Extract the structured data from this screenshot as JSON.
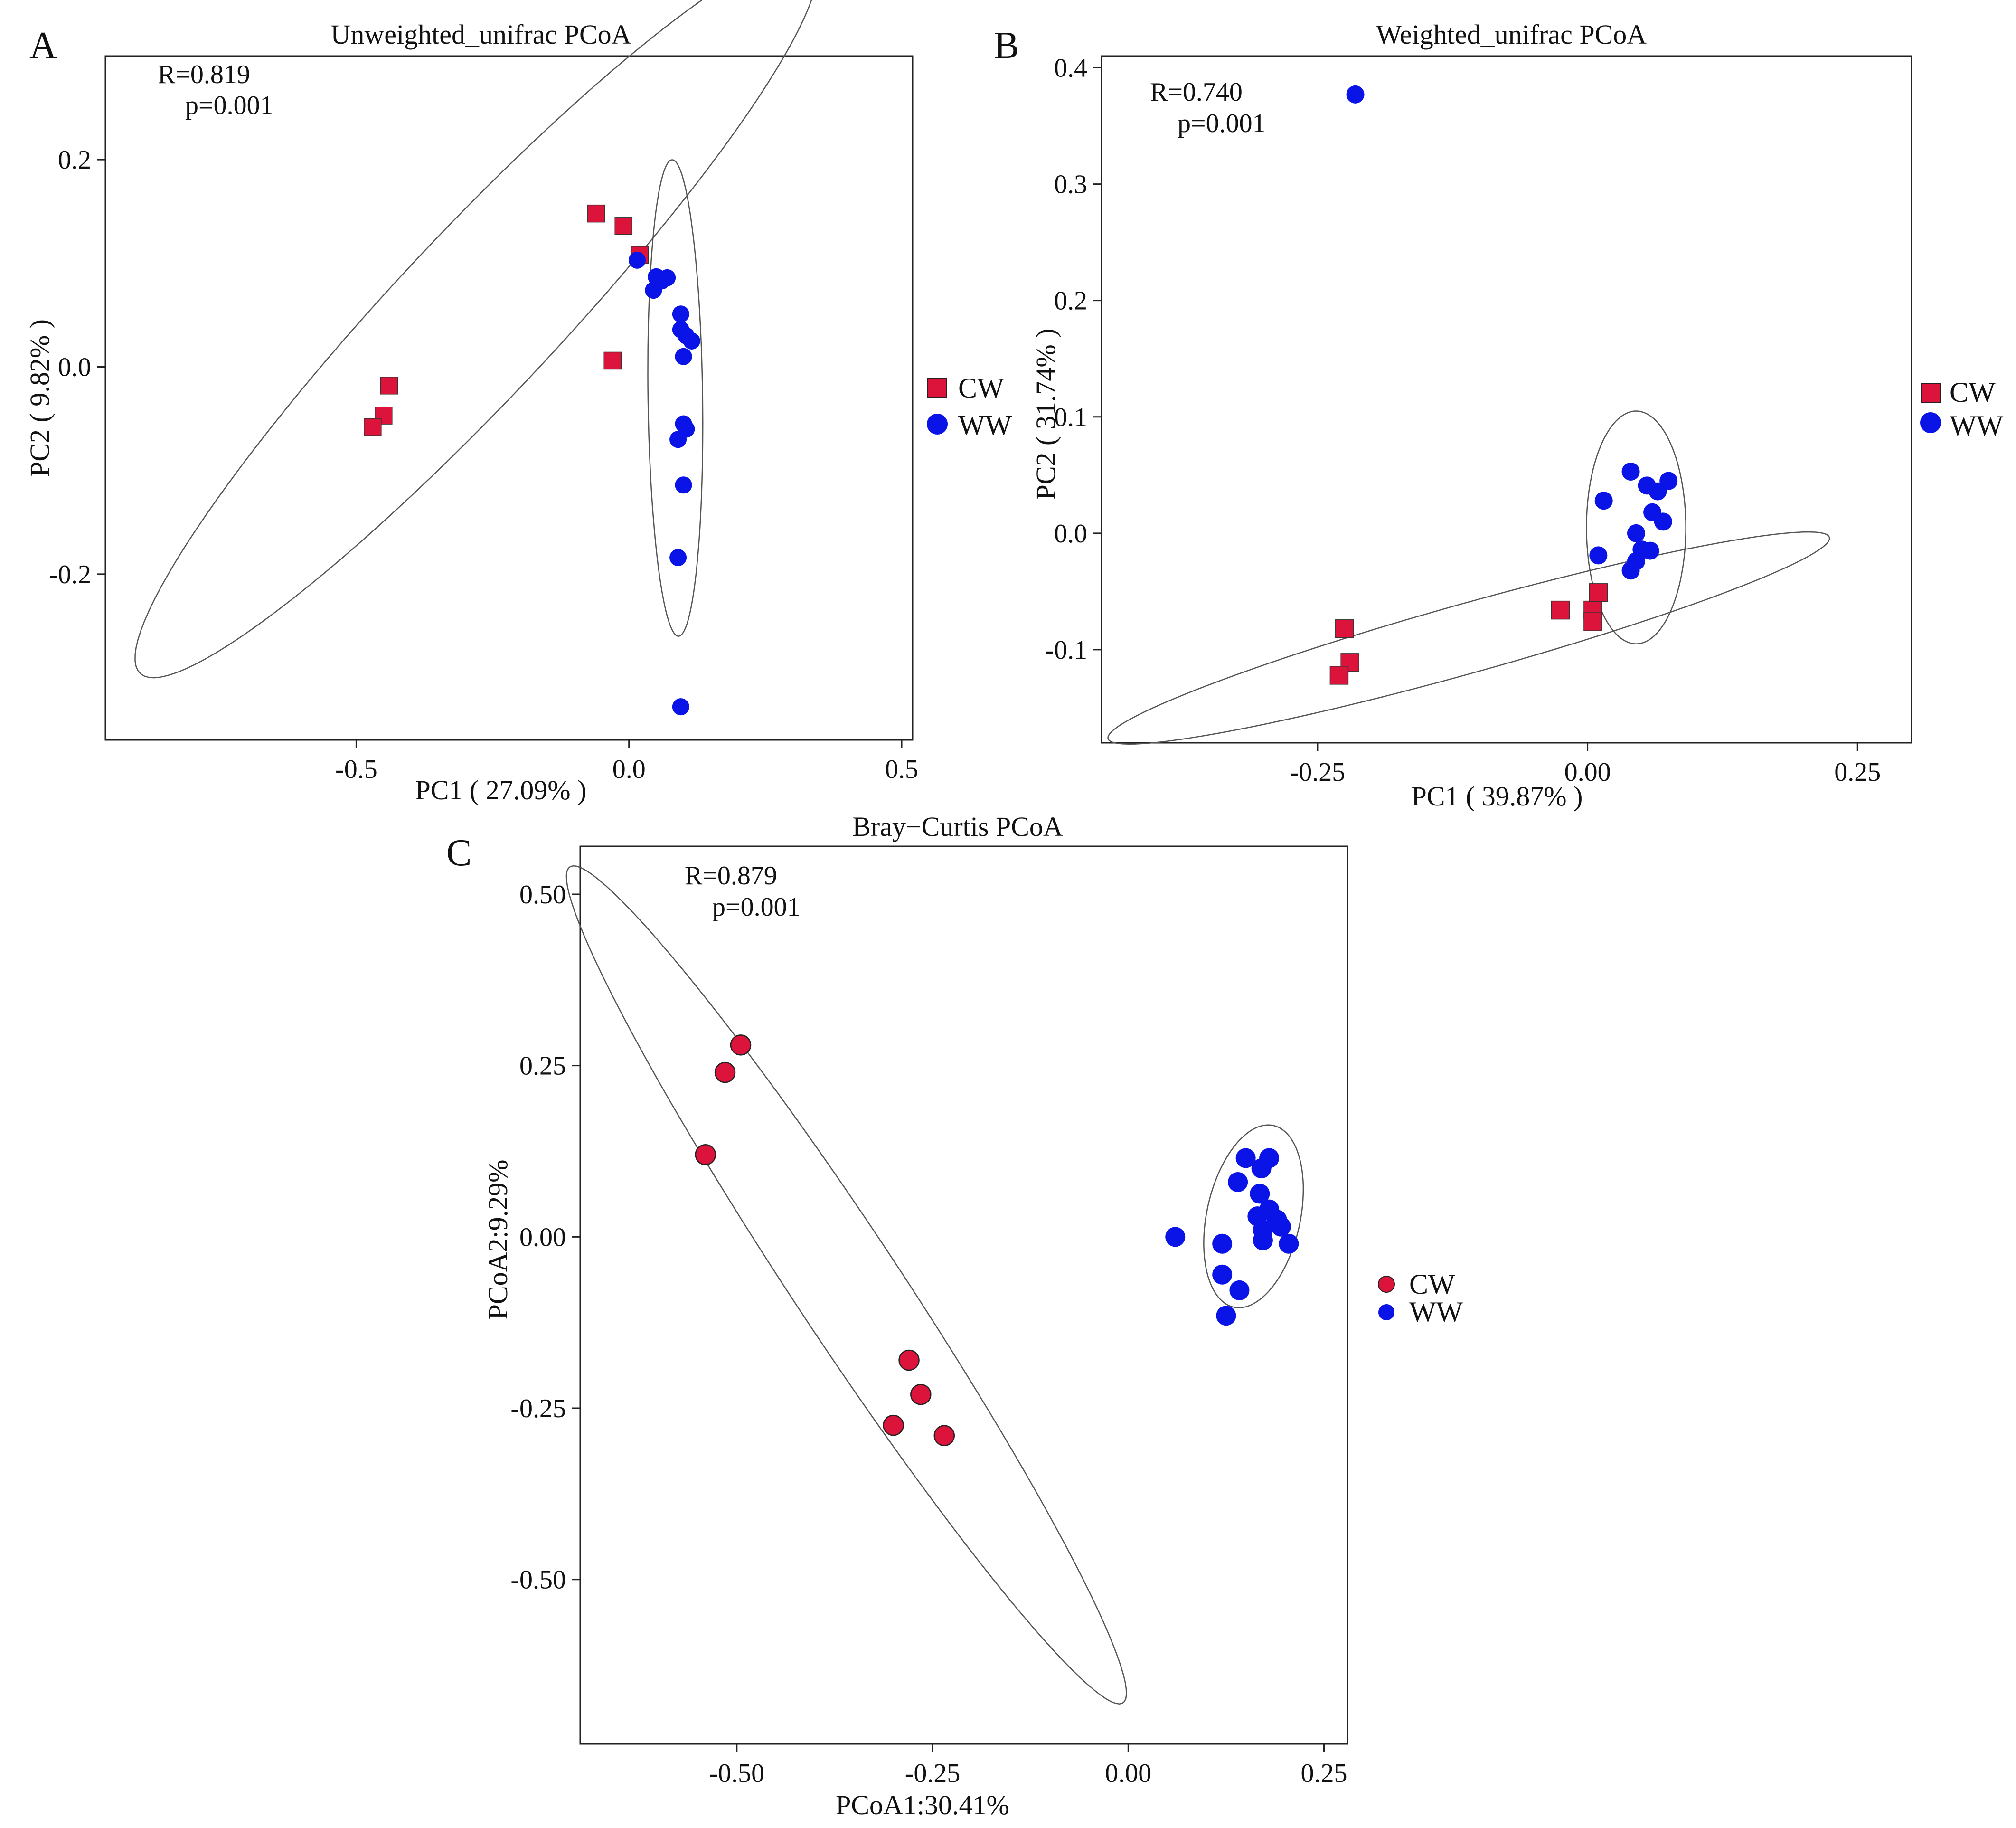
{
  "figure": {
    "colors": {
      "cw": "#dc143c",
      "ww": "#0a14e6",
      "axis": "#222222",
      "ellipse": "#555555"
    }
  },
  "chart_data": [
    {
      "type": "scatter",
      "panel": "A",
      "title": "Unweighted_unifrac PCoA",
      "xlabel": "PC1 ( 27.09% )",
      "ylabel": "PC2 ( 9.82% )",
      "xlim": [
        -0.96,
        0.52
      ],
      "ylim": [
        -0.36,
        0.3
      ],
      "xticks": [
        -0.5,
        0.0,
        0.5
      ],
      "xtick_labels": [
        "-0.5",
        "0.0",
        "0.5"
      ],
      "yticks": [
        -0.2,
        0.0,
        0.2
      ],
      "ytick_labels": [
        "-0.2",
        "0.0",
        "0.2"
      ],
      "stats": [
        "R=0.819",
        "p=0.001"
      ],
      "legend": [
        "CW",
        "WW"
      ],
      "marker_shape": {
        "CW": "square",
        "WW": "circle"
      },
      "series": [
        {
          "name": "CW",
          "points": [
            [
              -0.06,
              0.148
            ],
            [
              -0.01,
              0.136
            ],
            [
              0.02,
              0.108
            ],
            [
              -0.03,
              0.006
            ],
            [
              -0.44,
              -0.018
            ],
            [
              -0.45,
              -0.047
            ],
            [
              -0.47,
              -0.058
            ]
          ]
        },
        {
          "name": "WW",
          "points": [
            [
              0.015,
              0.103
            ],
            [
              0.05,
              0.087
            ],
            [
              0.07,
              0.086
            ],
            [
              0.06,
              0.083
            ],
            [
              0.045,
              0.074
            ],
            [
              0.095,
              0.051
            ],
            [
              0.095,
              0.036
            ],
            [
              0.105,
              0.03
            ],
            [
              0.115,
              0.025
            ],
            [
              0.1,
              0.01
            ],
            [
              0.1,
              -0.055
            ],
            [
              0.105,
              -0.06
            ],
            [
              0.09,
              -0.07
            ],
            [
              0.1,
              -0.114
            ],
            [
              0.09,
              -0.184
            ],
            [
              0.095,
              -0.328
            ]
          ]
        }
      ],
      "ellipses": [
        {
          "group": "CW",
          "center": [
            -0.28,
            0.05
          ],
          "semi_axes": [
            0.71,
            0.1
          ],
          "angle_deg": 28.5
        },
        {
          "group": "WW",
          "center": [
            0.085,
            -0.03
          ],
          "semi_axes": [
            0.23,
            0.05
          ],
          "angle_deg": 91.5
        }
      ]
    },
    {
      "type": "scatter",
      "panel": "B",
      "title": "Weighted_unifrac PCoA",
      "xlabel": "PC1 ( 39.87% )",
      "ylabel": "PC2 ( 31.74% )",
      "xlim": [
        -0.45,
        0.3
      ],
      "ylim": [
        -0.18,
        0.41
      ],
      "xticks": [
        -0.25,
        0.0,
        0.25
      ],
      "xtick_labels": [
        "-0.25",
        "0.00",
        "0.25"
      ],
      "yticks": [
        -0.1,
        0.0,
        0.1,
        0.2,
        0.3,
        0.4
      ],
      "ytick_labels": [
        "-0.1",
        "0.0",
        "0.1",
        "0.2",
        "0.3",
        "0.4"
      ],
      "stats": [
        "R=0.740",
        "p=0.001"
      ],
      "legend": [
        "CW",
        "WW"
      ],
      "marker_shape": {
        "CW": "square",
        "WW": "circle"
      },
      "series": [
        {
          "name": "CW",
          "points": [
            [
              -0.225,
              -0.082
            ],
            [
              -0.22,
              -0.111
            ],
            [
              -0.23,
              -0.122
            ],
            [
              -0.025,
              -0.066
            ],
            [
              0.005,
              -0.066
            ],
            [
              0.005,
              -0.076
            ],
            [
              0.01,
              -0.051
            ]
          ]
        },
        {
          "name": "WW",
          "points": [
            [
              -0.215,
              0.377
            ],
            [
              0.04,
              0.053
            ],
            [
              0.055,
              0.041
            ],
            [
              0.075,
              0.045
            ],
            [
              0.065,
              0.036
            ],
            [
              0.015,
              0.028
            ],
            [
              0.06,
              0.018
            ],
            [
              0.07,
              0.01
            ],
            [
              0.045,
              0.0
            ],
            [
              0.05,
              -0.014
            ],
            [
              0.058,
              -0.015
            ],
            [
              0.01,
              -0.019
            ],
            [
              0.045,
              -0.024
            ],
            [
              0.04,
              -0.032
            ]
          ]
        }
      ],
      "ellipses": [
        {
          "group": "CW",
          "center": [
            -0.11,
            -0.09
          ],
          "semi_axes": [
            0.345,
            0.03
          ],
          "angle_deg": 14.5
        },
        {
          "group": "WW",
          "center": [
            0.045,
            0.005
          ],
          "semi_axes": [
            0.1,
            0.046
          ],
          "angle_deg": 90
        }
      ]
    },
    {
      "type": "scatter",
      "panel": "C",
      "title": "Bray−Curtis PCoA",
      "xlabel": "PCoA1:30.41%",
      "ylabel": "PCoA2:9.29%",
      "xlim": [
        -0.7,
        0.28
      ],
      "ylim": [
        -0.74,
        0.57
      ],
      "xticks": [
        -0.5,
        -0.25,
        0.0,
        0.25
      ],
      "xtick_labels": [
        "-0.50",
        "-0.25",
        "0.00",
        "0.25"
      ],
      "yticks": [
        -0.5,
        -0.25,
        0.0,
        0.25,
        0.5
      ],
      "ytick_labels": [
        "-0.50",
        "-0.25",
        "0.00",
        "0.25",
        "0.50"
      ],
      "stats": [
        "R=0.879",
        "p=0.001"
      ],
      "legend": [
        "CW",
        "WW"
      ],
      "marker_shape": {
        "CW": "circle",
        "WW": "circle"
      },
      "series": [
        {
          "name": "CW",
          "points": [
            [
              -0.495,
              0.28
            ],
            [
              -0.515,
              0.24
            ],
            [
              -0.54,
              0.12
            ],
            [
              -0.28,
              -0.18
            ],
            [
              -0.265,
              -0.23
            ],
            [
              -0.3,
              -0.275
            ],
            [
              -0.235,
              -0.29
            ]
          ]
        },
        {
          "name": "WW",
          "points": [
            [
              0.15,
              0.115
            ],
            [
              0.18,
              0.115
            ],
            [
              0.17,
              0.1
            ],
            [
              0.14,
              0.08
            ],
            [
              0.168,
              0.063
            ],
            [
              0.18,
              0.04
            ],
            [
              0.165,
              0.03
            ],
            [
              0.19,
              0.025
            ],
            [
              0.195,
              0.015
            ],
            [
              0.172,
              0.01
            ],
            [
              0.172,
              -0.005
            ],
            [
              0.205,
              -0.01
            ],
            [
              0.06,
              0.0
            ],
            [
              0.12,
              -0.01
            ],
            [
              0.12,
              -0.055
            ],
            [
              0.142,
              -0.078
            ],
            [
              0.125,
              -0.115
            ]
          ]
        }
      ],
      "ellipses": [
        {
          "group": "CW",
          "center": [
            -0.36,
            -0.07
          ],
          "semi_axes": [
            0.705,
            0.07
          ],
          "angle_deg": -60
        },
        {
          "group": "WW",
          "center": [
            0.16,
            0.03
          ],
          "semi_axes": [
            0.135,
            0.06
          ],
          "angle_deg": 80
        }
      ]
    }
  ]
}
